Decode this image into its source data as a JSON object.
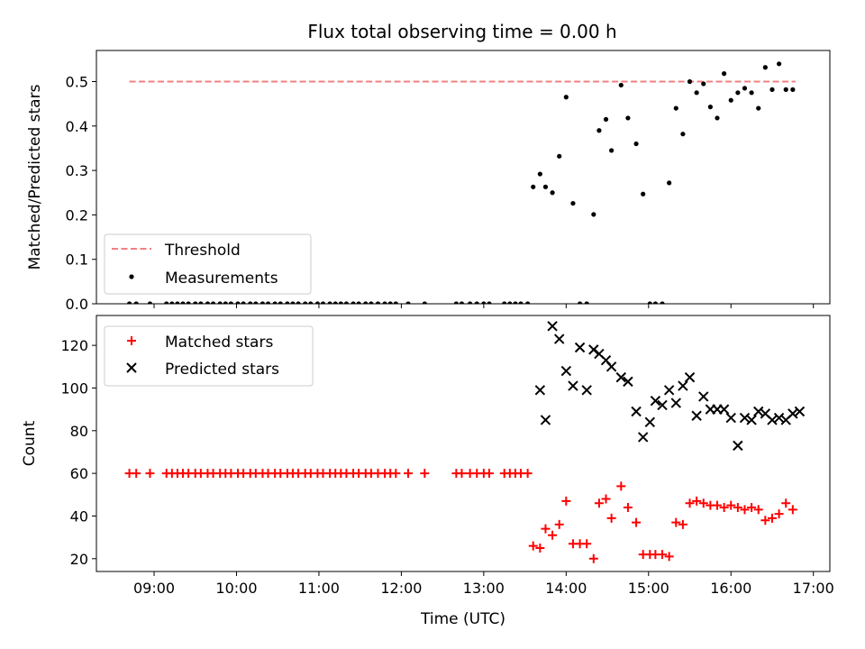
{
  "figure": {
    "title": "Flux total observing time = 0.00 h"
  },
  "chart_data": [
    {
      "type": "scatter",
      "title": "Flux total observing time = 0.00 h",
      "xlabel": "",
      "ylabel": "Matched/Predicted stars",
      "xlim": [
        "08:18",
        "17:12"
      ],
      "ylim": [
        0,
        0.57
      ],
      "yticks": [
        "0.0",
        "0.1",
        "0.2",
        "0.3",
        "0.4",
        "0.5"
      ],
      "grid": false,
      "legend": {
        "placement": "lower-left",
        "entries": [
          "Threshold",
          "Measurements"
        ]
      },
      "series": [
        {
          "name": "Threshold",
          "style": "dashed-line",
          "color": "#f08080",
          "x": [
            "08:42",
            "16:47"
          ],
          "y": [
            0.5,
            0.5
          ]
        },
        {
          "name": "Measurements",
          "style": "dot",
          "color": "#000000",
          "x": [
            "08:42",
            "08:47",
            "08:57",
            "09:09",
            "09:13",
            "09:17",
            "09:21",
            "09:25",
            "09:30",
            "09:34",
            "09:39",
            "09:43",
            "09:48",
            "09:52",
            "09:56",
            "10:01",
            "10:05",
            "10:10",
            "10:14",
            "10:19",
            "10:23",
            "10:28",
            "10:32",
            "10:37",
            "10:41",
            "10:45",
            "10:50",
            "10:54",
            "10:59",
            "11:03",
            "11:08",
            "11:12",
            "11:16",
            "11:20",
            "11:25",
            "11:29",
            "11:34",
            "11:38",
            "11:43",
            "11:48",
            "11:52",
            "11:56",
            "12:05",
            "12:17",
            "12:40",
            "12:44",
            "12:50",
            "12:55",
            "13:00",
            "13:04",
            "13:15",
            "13:19",
            "13:23",
            "13:27",
            "13:32",
            "13:36",
            "13:41",
            "13:45",
            "13:50",
            "13:55",
            "14:00",
            "14:05",
            "14:10",
            "14:15",
            "14:20",
            "14:24",
            "14:29",
            "14:33",
            "14:40",
            "14:45",
            "14:51",
            "14:56",
            "15:01",
            "15:05",
            "15:10",
            "15:15",
            "15:20",
            "15:25",
            "15:30",
            "15:35",
            "15:40",
            "15:45",
            "15:50",
            "15:55",
            "16:00",
            "16:05",
            "16:10",
            "16:15",
            "16:20",
            "16:25",
            "16:30",
            "16:35",
            "16:40",
            "16:45"
          ],
          "y": [
            0,
            0,
            0,
            0,
            0,
            0,
            0,
            0,
            0,
            0,
            0,
            0,
            0,
            0,
            0,
            0,
            0,
            0,
            0,
            0,
            0,
            0,
            0,
            0,
            0,
            0,
            0,
            0,
            0,
            0,
            0,
            0,
            0,
            0,
            0,
            0,
            0,
            0,
            0,
            0,
            0,
            0,
            0,
            0,
            0,
            0,
            0,
            0,
            0,
            0,
            0,
            0,
            0,
            0,
            0,
            0.263,
            0.292,
            0.263,
            0.25,
            0.332,
            0.465,
            0.226,
            0,
            0,
            0.201,
            0.39,
            0.415,
            0.345,
            0.492,
            0.418,
            0.36,
            0.247,
            0,
            0,
            0,
            0.272,
            0.44,
            0.382,
            0.5,
            0.475,
            0.495,
            0.443,
            0.418,
            0.518,
            0.458,
            0.475,
            0.485,
            0.475,
            0.44,
            0.532,
            0.482,
            0.54,
            0.482,
            0.482
          ]
        }
      ]
    },
    {
      "type": "scatter",
      "xlabel": "Time (UTC)",
      "ylabel": "Count",
      "xlim": [
        "08:18",
        "17:12"
      ],
      "ylim": [
        14,
        134
      ],
      "xticks": [
        "09:00",
        "10:00",
        "11:00",
        "12:00",
        "13:00",
        "14:00",
        "15:00",
        "16:00",
        "17:00"
      ],
      "yticks": [
        "20",
        "40",
        "60",
        "80",
        "100",
        "120"
      ],
      "grid": false,
      "legend": {
        "placement": "upper-left",
        "entries": [
          "Matched stars",
          "Predicted stars"
        ]
      },
      "series": [
        {
          "name": "Matched stars",
          "marker": "plus",
          "color": "#ff0000",
          "x": [
            "08:42",
            "08:47",
            "08:57",
            "09:09",
            "09:13",
            "09:17",
            "09:21",
            "09:25",
            "09:30",
            "09:34",
            "09:39",
            "09:43",
            "09:48",
            "09:52",
            "09:56",
            "10:01",
            "10:05",
            "10:10",
            "10:14",
            "10:19",
            "10:23",
            "10:28",
            "10:32",
            "10:37",
            "10:41",
            "10:45",
            "10:50",
            "10:54",
            "10:59",
            "11:03",
            "11:08",
            "11:12",
            "11:16",
            "11:20",
            "11:25",
            "11:29",
            "11:34",
            "11:38",
            "11:43",
            "11:48",
            "11:52",
            "11:56",
            "12:05",
            "12:17",
            "12:40",
            "12:44",
            "12:50",
            "12:55",
            "13:00",
            "13:04",
            "13:15",
            "13:19",
            "13:23",
            "13:27",
            "13:32",
            "13:36",
            "13:41",
            "13:45",
            "13:50",
            "13:55",
            "14:00",
            "14:05",
            "14:10",
            "14:15",
            "14:20",
            "14:24",
            "14:29",
            "14:33",
            "14:40",
            "14:45",
            "14:51",
            "14:56",
            "15:01",
            "15:05",
            "15:10",
            "15:15",
            "15:20",
            "15:25",
            "15:30",
            "15:35",
            "15:40",
            "15:45",
            "15:50",
            "15:55",
            "16:00",
            "16:05",
            "16:10",
            "16:15",
            "16:20",
            "16:25",
            "16:30",
            "16:35",
            "16:40",
            "16:45"
          ],
          "y": [
            60,
            60,
            60,
            60,
            60,
            60,
            60,
            60,
            60,
            60,
            60,
            60,
            60,
            60,
            60,
            60,
            60,
            60,
            60,
            60,
            60,
            60,
            60,
            60,
            60,
            60,
            60,
            60,
            60,
            60,
            60,
            60,
            60,
            60,
            60,
            60,
            60,
            60,
            60,
            60,
            60,
            60,
            60,
            60,
            60,
            60,
            60,
            60,
            60,
            60,
            60,
            60,
            60,
            60,
            60,
            26,
            25,
            34,
            31,
            36,
            47,
            27,
            27,
            27,
            20,
            46,
            48,
            39,
            54,
            44,
            37,
            22,
            22,
            22,
            22,
            21,
            37,
            36,
            46,
            47,
            46,
            45,
            45,
            44,
            45,
            44,
            43,
            44,
            43,
            38,
            39,
            41,
            46,
            43
          ]
        },
        {
          "name": "Predicted stars",
          "marker": "x",
          "color": "#000000",
          "x": [
            "13:41",
            "13:45",
            "13:50",
            "13:55",
            "14:00",
            "14:05",
            "14:10",
            "14:15",
            "14:20",
            "14:24",
            "14:29",
            "14:33",
            "14:40",
            "14:45",
            "14:51",
            "14:56",
            "15:01",
            "15:05",
            "15:10",
            "15:15",
            "15:20",
            "15:25",
            "15:30",
            "15:35",
            "15:40",
            "15:45",
            "15:50",
            "15:55",
            "16:00",
            "16:05",
            "16:10",
            "16:15",
            "16:20",
            "16:25",
            "16:30",
            "16:35",
            "16:40",
            "16:45",
            "16:50"
          ],
          "y": [
            99,
            85,
            129,
            123,
            108,
            101,
            119,
            99,
            118,
            116,
            113,
            110,
            105,
            103,
            89,
            77,
            84,
            94,
            92,
            99,
            93,
            101,
            105,
            87,
            96,
            90,
            90,
            90,
            86,
            73,
            86,
            85,
            89,
            88,
            85,
            86,
            85,
            88,
            89
          ]
        }
      ]
    }
  ]
}
